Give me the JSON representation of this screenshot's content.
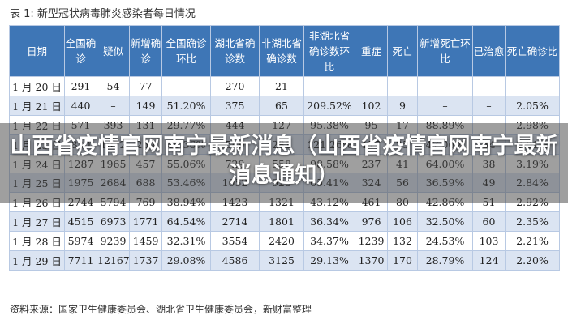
{
  "title": "表 1: 新型冠状病毒肺炎感染者每日情况",
  "headers": [
    "日期",
    "全国确诊",
    "疑似",
    "新增确诊",
    "全国确诊环比",
    "湖北省确诊数",
    "非湖北省确诊数",
    "非湖北省确诊数环比",
    "重症",
    "死亡",
    "新增死亡环比",
    "已治愈",
    "死亡确诊比"
  ],
  "rows": [
    [
      "1 月 20 日",
      "291",
      "54",
      "77",
      "–",
      "270",
      "21",
      "–",
      "–",
      "–",
      "–",
      "–",
      "–"
    ],
    [
      "1 月 21 日",
      "440",
      "–",
      "149",
      "51.20%",
      "375",
      "65",
      "209.52%",
      "102",
      "9",
      "–",
      "–",
      "2.05%"
    ],
    [
      "1 月 22 日",
      "571",
      "393",
      "131",
      "29.77%",
      "444",
      "127",
      "95.38%",
      "95",
      "17",
      "88.89%",
      "–",
      "2.98%"
    ],
    [
      "1 月 23 日",
      "830",
      "1072",
      "259",
      "45.36%",
      "549",
      "281",
      "121.26%",
      "177",
      "25",
      "47.06%",
      "34",
      "3.01%"
    ],
    [
      "1 月 24 日",
      "1287",
      "1965",
      "457",
      "55.06%",
      "729",
      "558",
      "98.58%",
      "237",
      "41",
      "64.00%",
      "38",
      "3.19%"
    ],
    [
      "1 月 25 日",
      "1975",
      "2684",
      "688",
      "53.46%",
      "1052",
      "923",
      "65.41%",
      "324",
      "56",
      "36.59%",
      "49",
      "2.84%"
    ],
    [
      "1 月 26 日",
      "2744",
      "5794",
      "769",
      "38.94%",
      "1423",
      "1321",
      "43.12%",
      "461",
      "80",
      "42.86%",
      "51",
      "2.92%"
    ],
    [
      "1 月 27 日",
      "4515",
      "6973",
      "1771",
      "64.54%",
      "2714",
      "1801",
      "36.34%",
      "976",
      "106",
      "32.50%",
      "60",
      "2.35%"
    ],
    [
      "1 月 28 日",
      "5974",
      "9239",
      "1459",
      "32.31%",
      "3554",
      "2420",
      "34.37%",
      "1239",
      "132",
      "24.53%",
      "103",
      "2.21%"
    ],
    [
      "1 月 29 日",
      "7711",
      "12167",
      "1737",
      "29.08%",
      "4586",
      "3125",
      "29.13%",
      "1370",
      "170",
      "28.79%",
      "124",
      "2.20%"
    ]
  ],
  "source": "资料来源：国家卫生健康委员会、湖北省卫生健康委员会，新财富整理",
  "overlay_title": "山西省疫情官网南宁最新消息（山西省疫情官网南宁最新消息通知）"
}
